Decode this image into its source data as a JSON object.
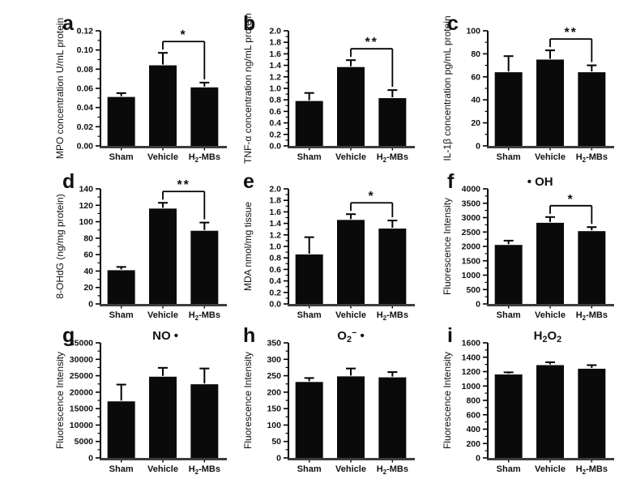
{
  "figure": {
    "background": "#ffffff",
    "bar_color": "#0a0a0a",
    "axis_color": "#000000",
    "baseline_color": "#3d3d3d",
    "error_bar_color": "#000000",
    "groups": [
      "Sham",
      "Vehicle",
      "H2-MBs"
    ]
  },
  "chart_data": [
    {
      "panel_label": "a",
      "type": "bar",
      "title": "",
      "title_x_frac": 0.5,
      "ylabel": "MPO concentration U/mL protein",
      "categories": [
        "Sham",
        "Vehicle",
        "H~2~-MBs"
      ],
      "values": [
        0.051,
        0.084,
        0.061
      ],
      "errors": [
        0.004,
        0.013,
        0.005
      ],
      "ylim": [
        0,
        0.12
      ],
      "ytick_step": 0.02,
      "ydecimals": 2,
      "sig": {
        "label": "*",
        "from": 1,
        "to": 2
      }
    },
    {
      "panel_label": "b",
      "type": "bar",
      "title": "",
      "title_x_frac": 0.5,
      "ylabel": "TNF-α concentration ng/mL protein",
      "categories": [
        "Sham",
        "Vehicle",
        "H~2~-MBs"
      ],
      "values": [
        0.78,
        1.37,
        0.83
      ],
      "errors": [
        0.14,
        0.12,
        0.14
      ],
      "ylim": [
        0,
        2.0
      ],
      "ytick_step": 0.2,
      "ydecimals": 1,
      "sig": {
        "label": "**",
        "from": 1,
        "to": 2
      }
    },
    {
      "panel_label": "c",
      "type": "bar",
      "title": "",
      "title_x_frac": 0.5,
      "ylabel": "IL-1β concentration pg/mL protein",
      "categories": [
        "Sham",
        "Vehicle",
        "H~2~-MBs"
      ],
      "values": [
        64,
        75,
        64
      ],
      "errors": [
        14,
        8,
        6
      ],
      "ylim": [
        0,
        100
      ],
      "ytick_step": 20,
      "ydecimals": 0,
      "sig": {
        "label": "**",
        "from": 1,
        "to": 2
      }
    },
    {
      "panel_label": "d",
      "type": "bar",
      "title": "",
      "title_x_frac": 0.5,
      "ylabel": "8-OHdG (ng/mg protein)",
      "categories": [
        "Sham",
        "Vehicle",
        "H~2~-MBs"
      ],
      "values": [
        41,
        116,
        89
      ],
      "errors": [
        4,
        7,
        10
      ],
      "ylim": [
        0,
        140
      ],
      "ytick_step": 20,
      "ydecimals": 0,
      "sig": {
        "label": "**",
        "from": 1,
        "to": 2
      }
    },
    {
      "panel_label": "e",
      "type": "bar",
      "title": "",
      "title_x_frac": 0.5,
      "ylabel": "MDA nmol/mg tissue",
      "categories": [
        "Sham",
        "Vehicle",
        "H~2~-MBs"
      ],
      "values": [
        0.86,
        1.46,
        1.31
      ],
      "errors": [
        0.3,
        0.1,
        0.14
      ],
      "ylim": [
        0,
        2.0
      ],
      "ytick_step": 0.2,
      "ydecimals": 1,
      "sig": {
        "label": "*",
        "from": 1,
        "to": 2
      }
    },
    {
      "panel_label": "f",
      "type": "bar",
      "title": "• OH",
      "title_x_frac": 0.42,
      "ylabel": "Fluorescence Intensity",
      "categories": [
        "Sham",
        "Vehicle",
        "H~2~-MBs"
      ],
      "values": [
        2050,
        2820,
        2530
      ],
      "errors": [
        150,
        200,
        140
      ],
      "ylim": [
        0,
        4000
      ],
      "ytick_step": 500,
      "ydecimals": 0,
      "sig": {
        "label": "*",
        "from": 1,
        "to": 2
      }
    },
    {
      "panel_label": "g",
      "type": "bar",
      "title": "NO •",
      "title_x_frac": 0.52,
      "ylabel": "Fluorescence Intensity",
      "categories": [
        "Sham",
        "Vehicle",
        "H~2~-MBs"
      ],
      "values": [
        17200,
        24700,
        22400
      ],
      "errors": [
        5100,
        2700,
        4800
      ],
      "ylim": [
        0,
        35000
      ],
      "ytick_step": 5000,
      "ydecimals": 0,
      "sig": null
    },
    {
      "panel_label": "h",
      "type": "bar",
      "title": "O~2~^−^ •",
      "title_x_frac": 0.5,
      "ylabel": "Fluorescence Intensity",
      "categories": [
        "Sham",
        "Vehicle",
        "H~2~-MBs"
      ],
      "values": [
        231,
        248,
        245
      ],
      "errors": [
        12,
        24,
        16
      ],
      "ylim": [
        0,
        350
      ],
      "ytick_step": 50,
      "ydecimals": 0,
      "sig": null
    },
    {
      "panel_label": "i",
      "type": "bar",
      "title": "H~2~O~2~",
      "title_x_frac": 0.48,
      "ylabel": "Fluorescence Intensity",
      "categories": [
        "Sham",
        "Vehicle",
        "H~2~-MBs"
      ],
      "values": [
        1160,
        1290,
        1240
      ],
      "errors": [
        30,
        40,
        50
      ],
      "ylim": [
        0,
        1600
      ],
      "ytick_step": 200,
      "ydecimals": 0,
      "sig": null
    }
  ]
}
